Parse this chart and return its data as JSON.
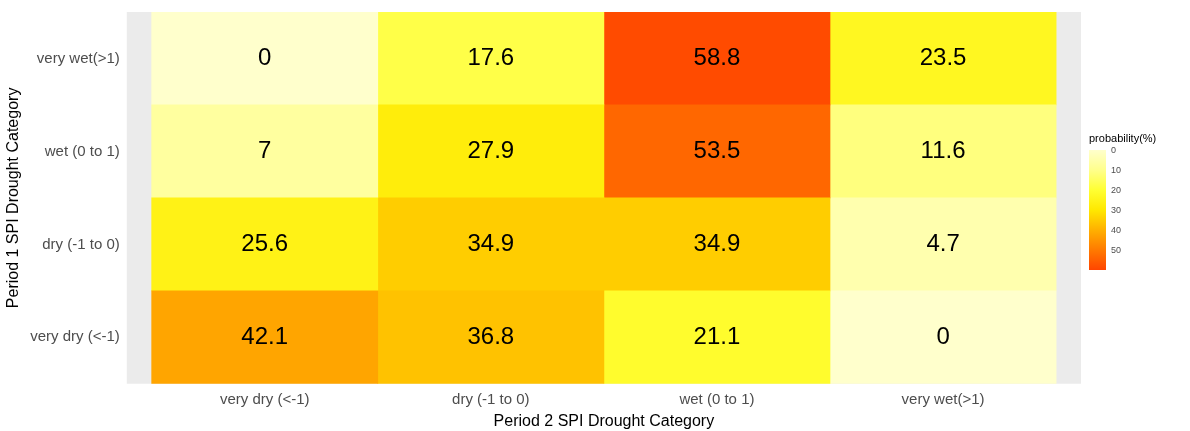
{
  "chart_data": {
    "type": "heatmap",
    "xlabel": "Period 2 SPI Drought Category",
    "ylabel": "Period 1 SPI Drought Category",
    "legend_title": "probability(%)",
    "categories": [
      "very dry (<-1)",
      "dry (-1 to 0)",
      "wet (0 to 1)",
      "very wet(>1)"
    ],
    "y_categories": [
      "very wet(>1)",
      "wet (0 to 1)",
      "dry (-1 to 0)",
      "very dry (<-1)"
    ],
    "cells": [
      [
        0,
        17.6,
        58.8,
        23.5
      ],
      [
        7,
        27.9,
        53.5,
        11.6
      ],
      [
        25.6,
        34.9,
        34.9,
        4.7
      ],
      [
        42.1,
        36.8,
        21.1,
        0
      ]
    ],
    "clim": [
      0,
      60
    ],
    "cticks": [
      0,
      10,
      20,
      30,
      40,
      50
    ],
    "data_labels": true
  }
}
